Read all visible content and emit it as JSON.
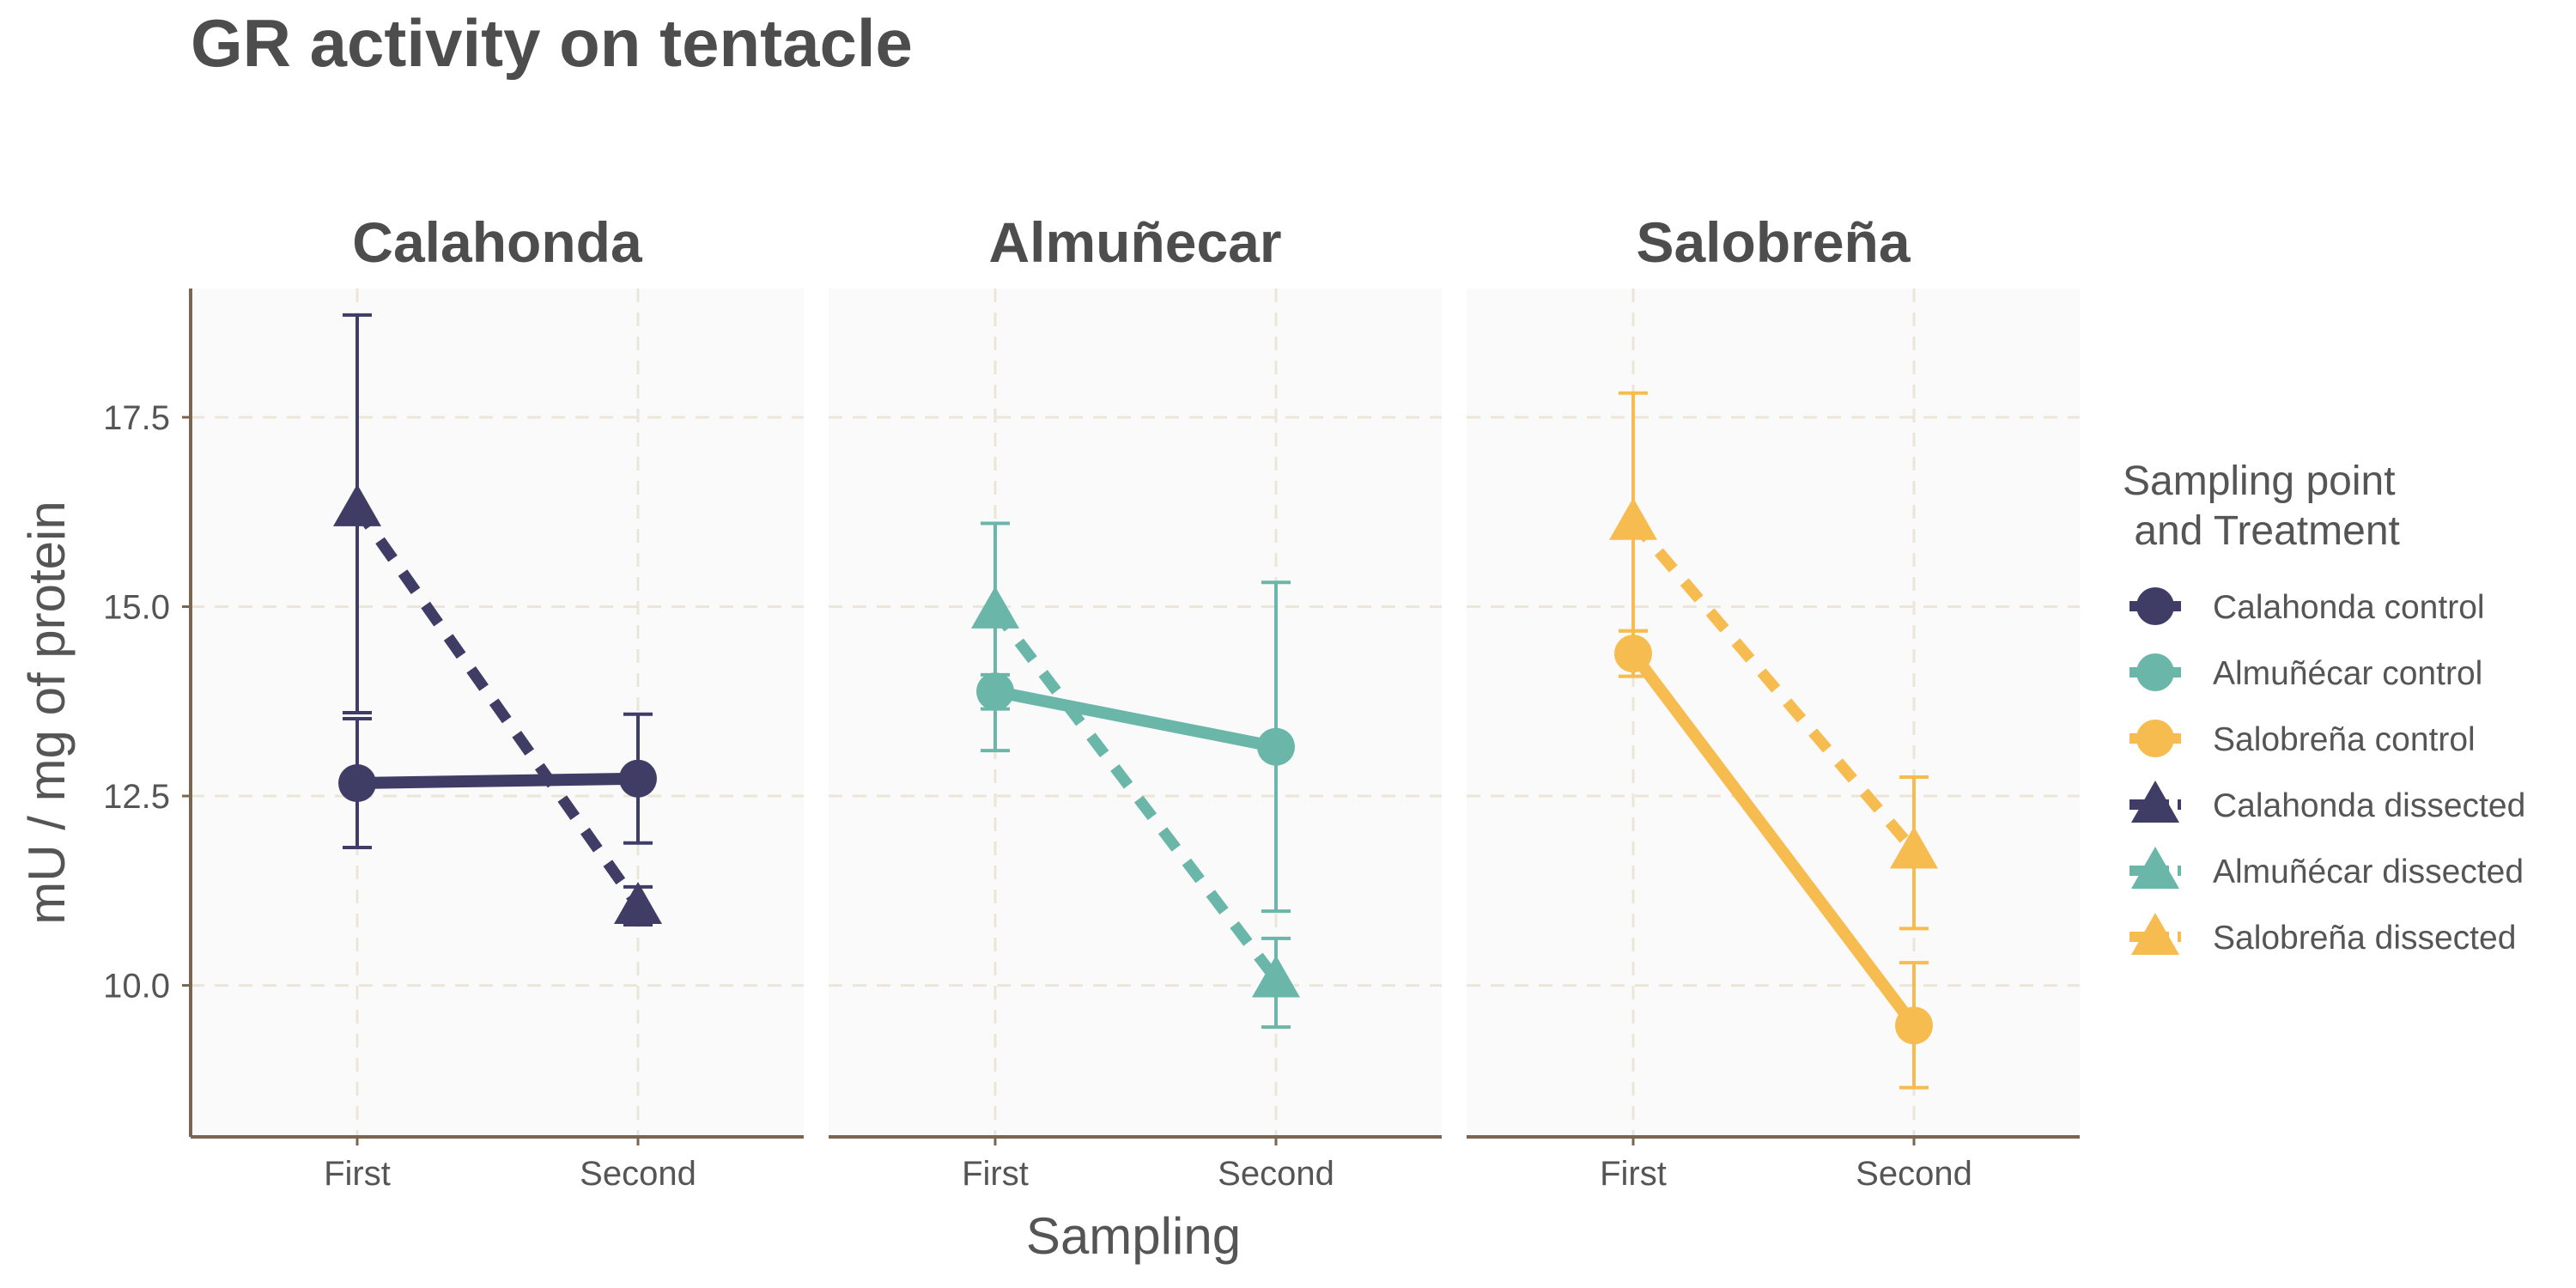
{
  "chart_data": {
    "type": "line",
    "title": "GR activity on tentacle",
    "xlabel": "Sampling",
    "ylabel": "mU / mg  of protein",
    "categories": [
      "First",
      "Second"
    ],
    "y_ticks": [
      "10.0",
      "12.5",
      "15.0",
      "17.5"
    ],
    "ylim": [
      8.0,
      19.2
    ],
    "grid": true,
    "legend_position": "right",
    "legend_title": [
      "Sampling point",
      " and Treatment"
    ],
    "facets": [
      {
        "name": "Calahonda",
        "color": "#3f3d66",
        "series": [
          {
            "name": "Calahonda control",
            "treatment": "control",
            "values": [
              12.67,
              12.73
            ],
            "error_low": [
              11.82,
              11.88
            ],
            "error_high": [
              13.52,
              13.58
            ]
          },
          {
            "name": "Calahonda dissected",
            "treatment": "dissected",
            "values": [
              16.3,
              11.05
            ],
            "error_low": [
              13.6,
              10.8
            ],
            "error_high": [
              18.85,
              11.3
            ]
          }
        ]
      },
      {
        "name": "Almuñecar",
        "color": "#6ab7aa",
        "series": [
          {
            "name": "Almuñécar control",
            "treatment": "control",
            "values": [
              13.88,
              13.15
            ],
            "error_low": [
              13.65,
              10.98
            ],
            "error_high": [
              14.1,
              15.32
            ]
          },
          {
            "name": "Almuñécar dissected",
            "treatment": "dissected",
            "values": [
              14.95,
              10.08
            ],
            "error_low": [
              13.1,
              9.45
            ],
            "error_high": [
              16.1,
              10.62
            ]
          }
        ]
      },
      {
        "name": "Salobreña",
        "color": "#f7bc50",
        "series": [
          {
            "name": "Salobreña control",
            "treatment": "control",
            "values": [
              14.38,
              9.47
            ],
            "error_low": [
              14.08,
              8.65
            ],
            "error_high": [
              14.68,
              10.3
            ]
          },
          {
            "name": "Salobreña dissected",
            "treatment": "dissected",
            "values": [
              16.12,
              11.78
            ],
            "error_low": [
              14.68,
              10.75
            ],
            "error_high": [
              17.82,
              12.75
            ]
          }
        ]
      }
    ],
    "legend": [
      {
        "label": "Calahonda control",
        "shape": "circle",
        "linetype": "solid",
        "color": "#3f3d66"
      },
      {
        "label": "Almuñécar control",
        "shape": "circle",
        "linetype": "solid",
        "color": "#6ab7aa"
      },
      {
        "label": "Salobreña control",
        "shape": "circle",
        "linetype": "solid",
        "color": "#f7bc50"
      },
      {
        "label": "Calahonda dissected",
        "shape": "triangle",
        "linetype": "dashed",
        "color": "#3f3d66"
      },
      {
        "label": "Almuñécar dissected",
        "shape": "triangle",
        "linetype": "dashed",
        "color": "#6ab7aa"
      },
      {
        "label": "Salobreña dissected",
        "shape": "triangle",
        "linetype": "dashed",
        "color": "#f7bc50"
      }
    ]
  }
}
